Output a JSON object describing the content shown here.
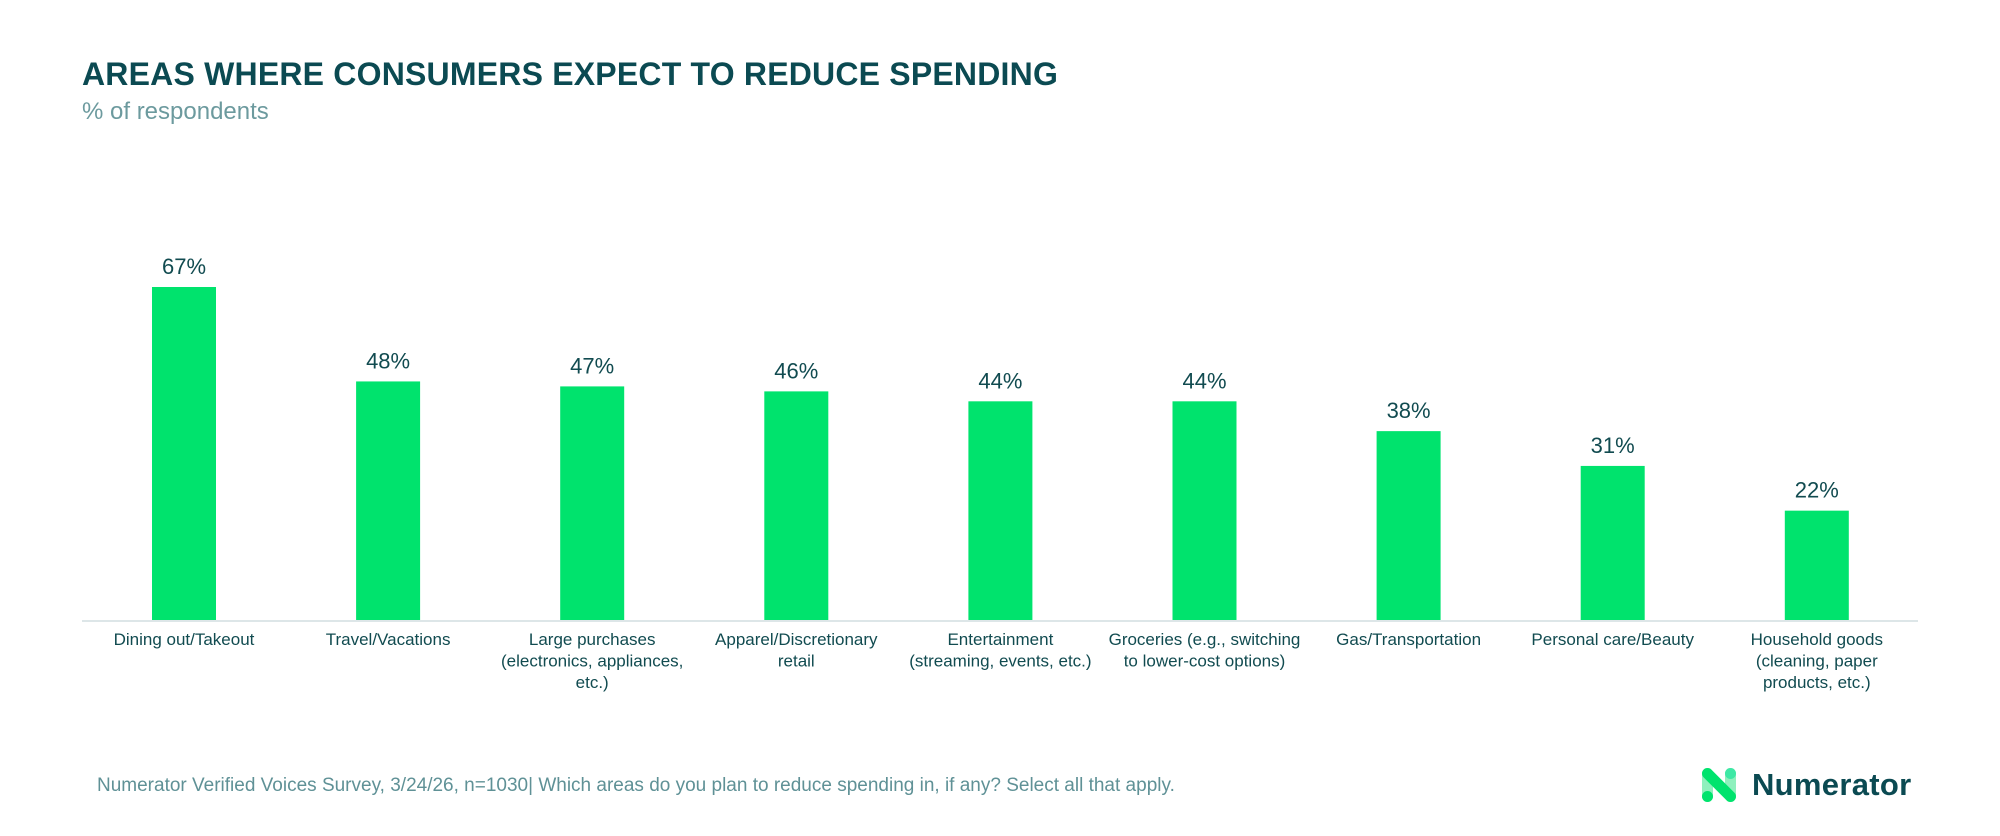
{
  "header": {
    "title": "AREAS WHERE CONSUMERS EXPECT TO REDUCE SPENDING",
    "subtitle": "% of respondents"
  },
  "footer": {
    "footnote": "Numerator Verified Voices Survey, 3/24/26, n=1030| Which areas do you plan to reduce spending in, if any? Select all that apply.",
    "logo_text": "Numerator",
    "logo_icon": "numerator-n-logo-icon"
  },
  "colors": {
    "bar": "#00e36d",
    "title": "#0b4a52",
    "subtitle": "#6c9a9e",
    "data_label": "#114b50",
    "axis": "#dde6e8"
  },
  "chart_data": {
    "type": "bar",
    "title": "AREAS WHERE CONSUMERS EXPECT TO REDUCE SPENDING",
    "subtitle": "% of respondents",
    "xlabel": "",
    "ylabel": "",
    "ylim": [
      0,
      67
    ],
    "grid": false,
    "legend": "none",
    "categories": [
      [
        "Dining out/Takeout"
      ],
      [
        "Travel/Vacations"
      ],
      [
        "Large purchases",
        "(electronics, appliances,",
        "etc.)"
      ],
      [
        "Apparel/Discretionary",
        "retail"
      ],
      [
        "Entertainment",
        "(streaming, events, etc.)"
      ],
      [
        "Groceries (e.g., switching",
        "to lower-cost options)"
      ],
      [
        "Gas/Transportation"
      ],
      [
        "Personal care/Beauty"
      ],
      [
        "Household goods",
        "(cleaning, paper",
        "products, etc.)"
      ]
    ],
    "values": [
      67,
      48,
      47,
      46,
      44,
      44,
      38,
      31,
      22
    ],
    "value_labels": [
      "67%",
      "48%",
      "47%",
      "46%",
      "44%",
      "44%",
      "38%",
      "31%",
      "22%"
    ]
  }
}
